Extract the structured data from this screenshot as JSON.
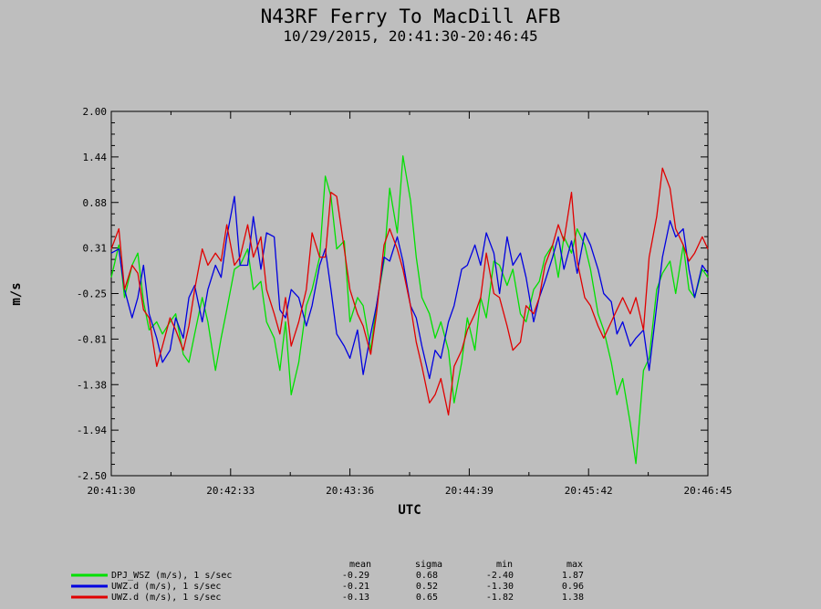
{
  "chart_data": {
    "type": "line",
    "title": "N43RF Ferry To MacDill AFB",
    "subtitle": "10/29/2015, 20:41:30-20:46:45",
    "xlabel": "UTC",
    "ylabel": "m/s",
    "x_tick_labels": [
      "20:41:30",
      "20:42:33",
      "20:43:36",
      "20:44:39",
      "20:45:42",
      "20:46:45"
    ],
    "x_range_seconds": [
      0,
      315
    ],
    "ylim": [
      -2.5,
      2.0
    ],
    "y_tick_labels": [
      "2.00",
      "1.44",
      "0.88",
      "0.31",
      "-0.25",
      "-0.81",
      "-1.38",
      "-1.94",
      "-2.50"
    ],
    "stats_headers": [
      "mean",
      "sigma",
      "min",
      "max"
    ],
    "series": [
      {
        "name": "DPJ_WSZ (m/s), 1 s/sec",
        "color": "#00e000",
        "stats": [
          "-0.29",
          "0.68",
          "-2.40",
          "1.87"
        ],
        "x": [
          0,
          4,
          7,
          11,
          14,
          17,
          20,
          24,
          27,
          31,
          34,
          38,
          41,
          44,
          48,
          51,
          55,
          58,
          61,
          65,
          68,
          72,
          75,
          79,
          82,
          86,
          89,
          92,
          95,
          99,
          103,
          106,
          110,
          113,
          116,
          119,
          123,
          126,
          130,
          133,
          137,
          140,
          144,
          147,
          151,
          154,
          158,
          161,
          164,
          168,
          171,
          174,
          178,
          181,
          185,
          188,
          192,
          195,
          198,
          202,
          205,
          209,
          212,
          216,
          219,
          223,
          226,
          229,
          233,
          236,
          239,
          243,
          246,
          250,
          253,
          257,
          260,
          264,
          267,
          270,
          274,
          277,
          281,
          284,
          288,
          291,
          295,
          298,
          302,
          305,
          308,
          312,
          315
        ],
        "y": [
          -0.05,
          0.35,
          -0.3,
          0.1,
          0.25,
          -0.35,
          -0.7,
          -0.6,
          -0.75,
          -0.6,
          -0.5,
          -1.0,
          -1.1,
          -0.75,
          -0.3,
          -0.6,
          -1.2,
          -0.8,
          -0.45,
          0.05,
          0.1,
          0.3,
          -0.2,
          -0.1,
          -0.6,
          -0.8,
          -1.2,
          -0.6,
          -1.5,
          -1.1,
          -0.4,
          -0.2,
          0.2,
          1.2,
          0.95,
          0.3,
          0.4,
          -0.6,
          -0.3,
          -0.4,
          -0.95,
          -0.4,
          0.15,
          1.05,
          0.5,
          1.45,
          0.9,
          0.2,
          -0.3,
          -0.5,
          -0.8,
          -0.6,
          -0.95,
          -1.6,
          -1.1,
          -0.55,
          -0.95,
          -0.3,
          -0.55,
          0.15,
          0.1,
          -0.15,
          0.05,
          -0.5,
          -0.6,
          -0.2,
          -0.1,
          0.2,
          0.35,
          -0.05,
          0.45,
          0.25,
          0.55,
          0.35,
          0.05,
          -0.5,
          -0.7,
          -1.1,
          -1.5,
          -1.3,
          -1.85,
          -2.35,
          -1.2,
          -1.05,
          -0.2,
          0.0,
          0.15,
          -0.25,
          0.35,
          -0.2,
          -0.3,
          0.05,
          -0.05
        ]
      },
      {
        "name": "UWZ.d (m/s), 1 s/sec",
        "color": "#0000e0",
        "stats": [
          "-0.21",
          "0.52",
          "-1.30",
          "0.96"
        ],
        "x": [
          0,
          4,
          7,
          11,
          14,
          17,
          20,
          24,
          27,
          31,
          34,
          38,
          41,
          44,
          48,
          51,
          55,
          58,
          61,
          65,
          68,
          72,
          75,
          79,
          82,
          86,
          89,
          92,
          95,
          99,
          103,
          106,
          110,
          113,
          116,
          119,
          123,
          126,
          130,
          133,
          137,
          140,
          144,
          147,
          151,
          154,
          158,
          161,
          164,
          168,
          171,
          174,
          178,
          181,
          185,
          188,
          192,
          195,
          198,
          202,
          205,
          209,
          212,
          216,
          219,
          223,
          226,
          229,
          233,
          236,
          239,
          243,
          246,
          250,
          253,
          257,
          260,
          264,
          267,
          270,
          274,
          277,
          281,
          284,
          288,
          291,
          295,
          298,
          302,
          305,
          308,
          312,
          315
        ],
        "y": [
          0.25,
          0.3,
          -0.2,
          -0.55,
          -0.3,
          0.1,
          -0.5,
          -0.8,
          -1.1,
          -0.95,
          -0.55,
          -0.8,
          -0.3,
          -0.15,
          -0.6,
          -0.2,
          0.1,
          -0.05,
          0.45,
          0.95,
          0.1,
          0.1,
          0.7,
          0.05,
          0.5,
          0.45,
          -0.45,
          -0.55,
          -0.2,
          -0.3,
          -0.65,
          -0.4,
          0.1,
          0.3,
          -0.2,
          -0.75,
          -0.9,
          -1.05,
          -0.7,
          -1.25,
          -0.75,
          -0.4,
          0.2,
          0.15,
          0.45,
          0.15,
          -0.4,
          -0.55,
          -0.9,
          -1.3,
          -0.95,
          -1.05,
          -0.6,
          -0.4,
          0.05,
          0.1,
          0.35,
          0.1,
          0.5,
          0.25,
          -0.25,
          0.45,
          0.1,
          0.25,
          -0.05,
          -0.6,
          -0.3,
          -0.1,
          0.2,
          0.45,
          0.05,
          0.4,
          0.0,
          0.5,
          0.35,
          0.05,
          -0.25,
          -0.35,
          -0.75,
          -0.6,
          -0.9,
          -0.8,
          -0.7,
          -1.2,
          -0.4,
          0.2,
          0.65,
          0.45,
          0.55,
          0.05,
          -0.3,
          0.1,
          0.0
        ]
      },
      {
        "name": "UWZ.d (m/s), 1 s/sec",
        "color": "#e00000",
        "stats": [
          "-0.13",
          "0.65",
          "-1.82",
          "1.38"
        ],
        "x": [
          0,
          4,
          7,
          11,
          14,
          17,
          20,
          24,
          27,
          31,
          34,
          38,
          41,
          44,
          48,
          51,
          55,
          58,
          61,
          65,
          68,
          72,
          75,
          79,
          82,
          86,
          89,
          92,
          95,
          99,
          103,
          106,
          110,
          113,
          116,
          119,
          123,
          126,
          130,
          133,
          137,
          140,
          144,
          147,
          151,
          154,
          158,
          161,
          164,
          168,
          171,
          174,
          178,
          181,
          185,
          188,
          192,
          195,
          198,
          202,
          205,
          209,
          212,
          216,
          219,
          223,
          226,
          229,
          233,
          236,
          239,
          243,
          246,
          250,
          253,
          257,
          260,
          264,
          267,
          270,
          274,
          277,
          281,
          284,
          288,
          291,
          295,
          298,
          302,
          305,
          308,
          312,
          315
        ],
        "y": [
          0.3,
          0.55,
          -0.2,
          0.1,
          0.0,
          -0.45,
          -0.55,
          -1.15,
          -0.9,
          -0.55,
          -0.7,
          -0.95,
          -0.65,
          -0.2,
          0.3,
          0.1,
          0.25,
          0.15,
          0.6,
          0.1,
          0.2,
          0.6,
          0.2,
          0.45,
          -0.2,
          -0.5,
          -0.75,
          -0.3,
          -0.9,
          -0.6,
          -0.2,
          0.5,
          0.2,
          0.2,
          1.0,
          0.95,
          0.3,
          -0.2,
          -0.5,
          -0.65,
          -1.0,
          -0.5,
          0.35,
          0.55,
          0.3,
          0.05,
          -0.4,
          -0.85,
          -1.15,
          -1.6,
          -1.5,
          -1.3,
          -1.75,
          -1.15,
          -0.95,
          -0.7,
          -0.5,
          -0.3,
          0.25,
          -0.25,
          -0.3,
          -0.65,
          -0.95,
          -0.85,
          -0.4,
          -0.5,
          -0.3,
          0.1,
          0.35,
          0.6,
          0.4,
          1.0,
          0.15,
          -0.3,
          -0.4,
          -0.65,
          -0.8,
          -0.6,
          -0.45,
          -0.3,
          -0.5,
          -0.3,
          -0.7,
          0.2,
          0.7,
          1.3,
          1.05,
          0.55,
          0.35,
          0.15,
          0.25,
          0.45,
          0.3
        ]
      }
    ]
  }
}
